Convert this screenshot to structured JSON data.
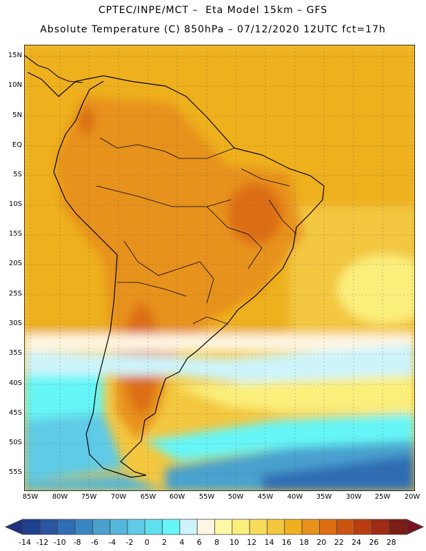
{
  "header": {
    "line1": "CPTEC/INPE/MCT –  Eta Model 15km – GFS",
    "line2": "Absolute Temperature (C) 850hPa – 07/12/2020 12UTC fct=17h"
  },
  "map": {
    "lat_labels": [
      "15N",
      "10N",
      "5N",
      "EQ",
      "5S",
      "10S",
      "15S",
      "20S",
      "25S",
      "30S",
      "35S",
      "40S",
      "45S",
      "50S",
      "55S"
    ],
    "lon_labels": [
      "85W",
      "80W",
      "75W",
      "70W",
      "65W",
      "60W",
      "55W",
      "50W",
      "45W",
      "40W",
      "35W",
      "30W",
      "25W",
      "20W"
    ]
  },
  "colorbar": {
    "labels": [
      "-14",
      "-12",
      "-10",
      "-8",
      "-6",
      "-4",
      "-2",
      "0",
      "2",
      "4",
      "6",
      "8",
      "10",
      "12",
      "14",
      "16",
      "18",
      "20",
      "22",
      "24",
      "26",
      "28"
    ],
    "colors": [
      "#1f3f8f",
      "#2a56a0",
      "#2f6db4",
      "#3a86c2",
      "#4aa1cf",
      "#54b6da",
      "#5fcbe6",
      "#5ee0ee",
      "#66f6f8",
      "#cdf4fb",
      "#fff6e3",
      "#fdf8a6",
      "#fbef7c",
      "#f7dc5c",
      "#f3c73f",
      "#eeb01f",
      "#e7921c",
      "#dd6e12",
      "#cb5410",
      "#b83e12",
      "#9f2b14",
      "#7a1d15"
    ],
    "arrow_low": "#1f3080",
    "arrow_high": "#7a1020"
  }
}
